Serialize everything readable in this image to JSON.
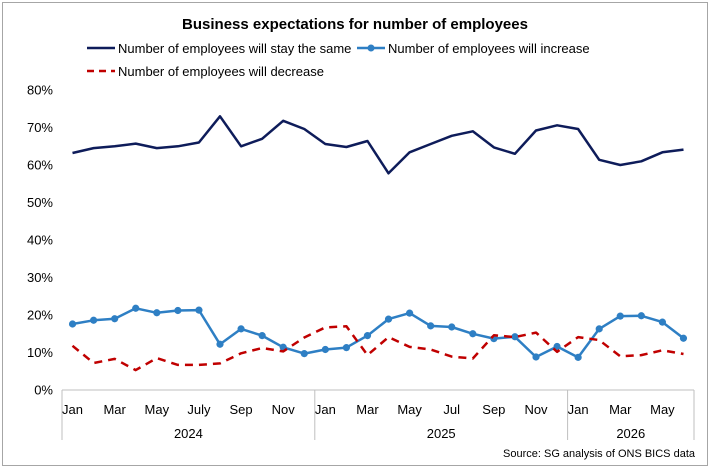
{
  "chart_data": {
    "type": "line",
    "title": "Business expectations for number of employees",
    "source": "Source: SG analysis of ONS BICS data",
    "xlabel": "",
    "ylabel": "",
    "ylim": [
      0,
      80
    ],
    "yticks": [
      "0%",
      "10%",
      "20%",
      "30%",
      "40%",
      "50%",
      "60%",
      "70%",
      "80%"
    ],
    "grid": false,
    "legend_position": "top",
    "month_labels": [
      "Jan",
      "Mar",
      "May",
      "July",
      "Sep",
      "Nov",
      "Jan",
      "Mar",
      "May",
      "Jul",
      "Sep",
      "Nov",
      "Jan",
      "Mar",
      "May"
    ],
    "years": [
      "2024",
      "2025",
      "2026"
    ],
    "series": [
      {
        "name": "Number of employees will stay the same",
        "color": "#0e1c5a",
        "style": "solid",
        "values": [
          63.2,
          64.5,
          65.0,
          65.7,
          64.5,
          65.0,
          66.0,
          73.0,
          65.0,
          67.0,
          71.8,
          69.6,
          65.6,
          64.8,
          66.4,
          57.8,
          63.4,
          65.6,
          67.8,
          69.0,
          64.7,
          63.0,
          69.2,
          70.6,
          69.6,
          61.4,
          60.0,
          61.0,
          63.4,
          64.1
        ]
      },
      {
        "name": "Number of employees will increase",
        "color": "#2e7fc4",
        "style": "solid-markers",
        "values": [
          17.6,
          18.6,
          19.0,
          21.8,
          20.6,
          21.2,
          21.3,
          12.2,
          16.3,
          14.5,
          11.4,
          9.7,
          10.8,
          11.3,
          14.5,
          18.9,
          20.5,
          17.1,
          16.8,
          15.0,
          13.7,
          14.2,
          8.8,
          11.6,
          8.7,
          16.3,
          19.7,
          19.8,
          18.1,
          13.8
        ]
      },
      {
        "name": "Number of employees will decrease",
        "color": "#c00000",
        "style": "dashed",
        "values": [
          11.8,
          7.2,
          8.3,
          5.3,
          8.5,
          6.7,
          6.7,
          7.1,
          9.8,
          11.2,
          10.3,
          14.0,
          16.7,
          17.0,
          9.3,
          14.1,
          11.5,
          10.8,
          8.9,
          8.4,
          14.6,
          14.1,
          15.3,
          10.2,
          14.1,
          13.3,
          9.0,
          9.3,
          10.6,
          9.6
        ]
      }
    ]
  }
}
